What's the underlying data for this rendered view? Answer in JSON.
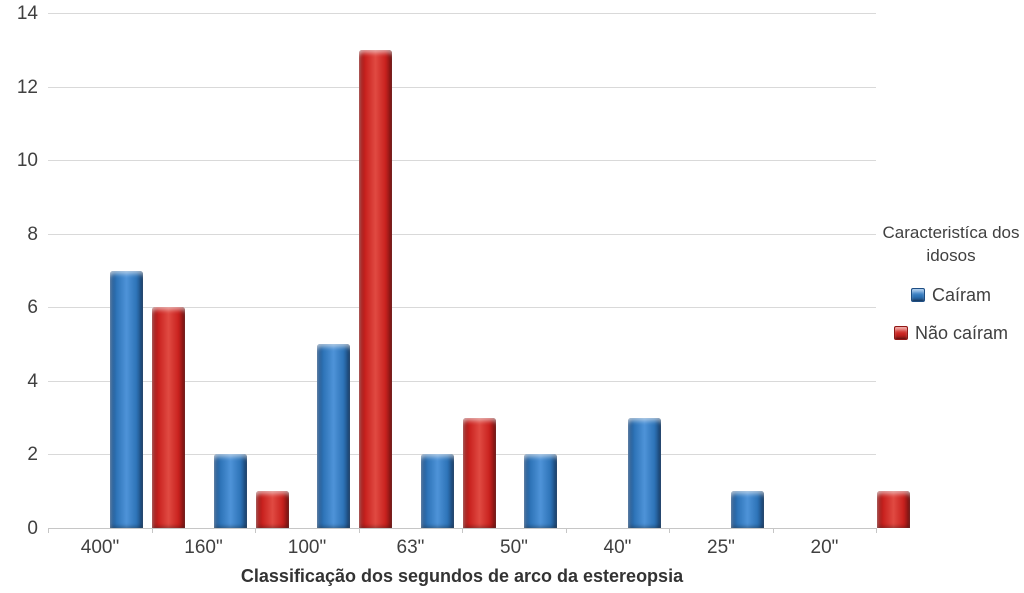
{
  "chart_data": {
    "type": "bar",
    "categories": [
      "400\"",
      "160\"",
      "100\"",
      "63\"",
      "50\"",
      "40\"",
      "25\"",
      "20\""
    ],
    "series": [
      {
        "name": "Caíram",
        "values": [
          7,
          2,
          5,
          2,
          2,
          3,
          1,
          0
        ],
        "color": "#2E74B8",
        "color_light": "#4E93D8",
        "color_dark": "#1E4E84"
      },
      {
        "name": "Não caíram",
        "values": [
          6,
          1,
          13,
          3,
          0,
          0,
          0,
          1
        ],
        "color": "#C9221F",
        "color_light": "#E04A42",
        "color_dark": "#8F1715"
      }
    ],
    "title": "",
    "xlabel": "Classificação dos segundos de arco da estereopsia",
    "ylabel": "",
    "ylim": [
      0,
      14
    ],
    "ytick_step": 2,
    "yticks": [
      0,
      2,
      4,
      6,
      8,
      10,
      12,
      14
    ],
    "grid": true,
    "legend_position": "right",
    "legend_title": "Caracteristíca dos idosos",
    "colors": {
      "gridline": "#D9D9D9",
      "axis_line": "#C6C6C6",
      "text": "#404040",
      "background": "#FFFFFF"
    }
  }
}
